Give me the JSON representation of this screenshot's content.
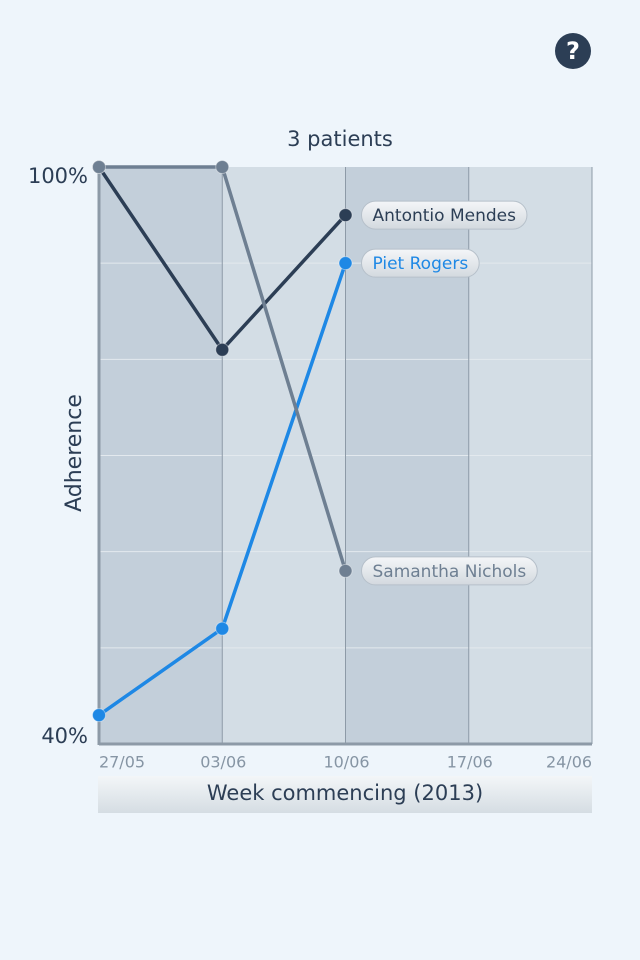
{
  "chart_data": {
    "type": "line",
    "title": "3 patients",
    "ylabel": "Adherence",
    "xlabel": "Week commencing (2013)",
    "categories": [
      "27/05",
      "03/06",
      "10/06",
      "17/06",
      "24/06"
    ],
    "series": [
      {
        "name": "Antontio Mendes",
        "color": "#2c3e55",
        "values": [
          100,
          81,
          95,
          null,
          null
        ]
      },
      {
        "name": "Piet Rogers",
        "color": "#1e88e5",
        "values": [
          43,
          52,
          90,
          null,
          null
        ]
      },
      {
        "name": "Samantha Nichols",
        "color": "#6e7f92",
        "values": [
          100,
          100,
          58,
          null,
          null
        ]
      }
    ],
    "ylim": [
      40,
      100
    ],
    "yticks": [
      {
        "value": 40,
        "label": "40%"
      },
      {
        "value": 100,
        "label": "100%"
      }
    ],
    "ygrid": [
      50,
      60,
      70,
      80,
      90
    ],
    "help": "?"
  }
}
